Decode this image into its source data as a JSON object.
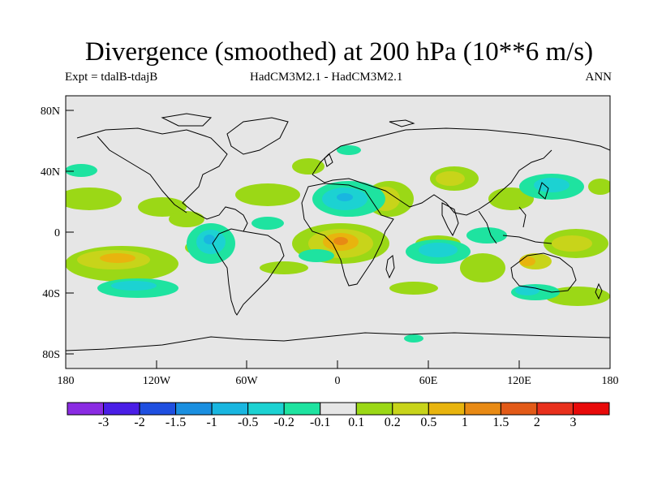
{
  "title": "Divergence (smoothed) at 200 hPa (10**6 m/s)",
  "subtitle_left": "Expt = tdalB-tdajB",
  "subtitle_center": "HadCM3M2.1 - HadCM3M2.1",
  "subtitle_right": "ANN",
  "axis": {
    "lat_ticks": [
      "80N",
      "40N",
      "0",
      "40S",
      "80S"
    ],
    "lon_ticks": [
      "180",
      "120W",
      "60W",
      "0",
      "60E",
      "120E",
      "180"
    ]
  },
  "legend": {
    "labels": [
      "-3",
      "-2",
      "-1.5",
      "-1",
      "-0.5",
      "-0.2",
      "-0.1",
      "0.1",
      "0.2",
      "0.5",
      "1",
      "1.5",
      "2",
      "3"
    ],
    "colors": [
      "#8a2be2",
      "#4a1ee6",
      "#1f4fe0",
      "#1a8fe0",
      "#19b6e0",
      "#1cd2d2",
      "#1ee3a0",
      "#e6e6e6",
      "#9bd816",
      "#c8d41a",
      "#e8b40e",
      "#e88a14",
      "#e25a18",
      "#e8301c",
      "#e80a0a"
    ]
  },
  "colors": {
    "background": "#e6e6e6",
    "frame": "#000000"
  }
}
